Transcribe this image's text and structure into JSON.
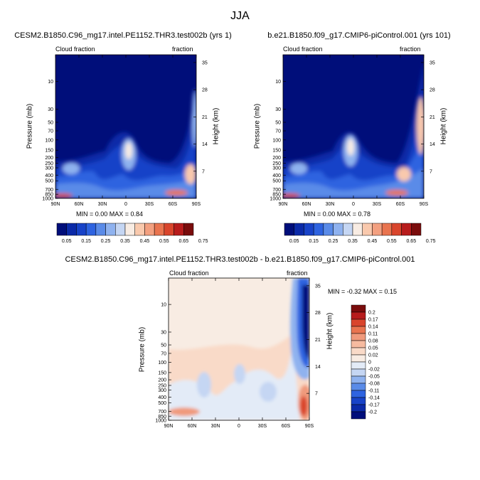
{
  "figure": {
    "title": "JJA",
    "colors": {
      "levels12": [
        "#000e7a",
        "#0b2aa8",
        "#1843c8",
        "#2e63e0",
        "#5a8be8",
        "#8fb2ef",
        "#c5d6f3",
        "#f8ece3",
        "#f9c9ad",
        "#f3a080",
        "#e9744f",
        "#d9452c",
        "#b71c1c",
        "#7a0c0c"
      ],
      "levels16": [
        "#000e7a",
        "#0b2aa8",
        "#1843c8",
        "#2e63e0",
        "#5a8be8",
        "#8fb2ef",
        "#c5d6f3",
        "#e3ebf7",
        "#f8ece3",
        "#f9dac8",
        "#f6bba0",
        "#f09a7c",
        "#e9744f",
        "#d9452c",
        "#b71c1c",
        "#7a0c0c"
      ]
    }
  },
  "chart_data": [
    {
      "type": "heatmap",
      "title": "CESM2.B1850.C96_mg17.intel.PE1152.THR3.test002b (yrs 1)",
      "subtitle_left": "Cloud fraction",
      "subtitle_right": "fraction",
      "ylabel": "Pressure (mb)",
      "ylabel_right": "Height (km)",
      "x_ticks": [
        "90N",
        "60N",
        "30N",
        "0",
        "30S",
        "60S",
        "90S"
      ],
      "y_ticks": [
        "10",
        "30",
        "50",
        "70",
        "100",
        "150",
        "200",
        "250",
        "300",
        "400",
        "500",
        "700",
        "850",
        "1000"
      ],
      "y_right_ticks": [
        "35",
        "28",
        "21",
        "14",
        "7"
      ],
      "min_max": "MIN =   0.00  MAX =   0.84",
      "colorbar_labels": [
        "0.05",
        "0.15",
        "0.25",
        "0.35",
        "0.45",
        "0.55",
        "0.65",
        "0.75"
      ]
    },
    {
      "type": "heatmap",
      "title": "b.e21.B1850.f09_g17.CMIP6-piControl.001 (yrs 101)",
      "subtitle_left": "Cloud fraction",
      "subtitle_right": "fraction",
      "ylabel": "Pressure (mb)",
      "ylabel_right": "Height (km)",
      "x_ticks": [
        "90N",
        "60N",
        "30N",
        "0",
        "30S",
        "60S",
        "90S"
      ],
      "y_ticks": [
        "10",
        "30",
        "50",
        "70",
        "100",
        "150",
        "200",
        "250",
        "300",
        "400",
        "500",
        "700",
        "850",
        "1000"
      ],
      "y_right_ticks": [
        "35",
        "28",
        "21",
        "14",
        "7"
      ],
      "min_max": "MIN =   0.00  MAX =   0.78",
      "colorbar_labels": [
        "0.05",
        "0.15",
        "0.25",
        "0.35",
        "0.45",
        "0.55",
        "0.65",
        "0.75"
      ]
    },
    {
      "type": "heatmap",
      "title": "CESM2.B1850.C96_mg17.intel.PE1152.THR3.test002b - b.e21.B1850.f09_g17.CMIP6-piControl.001",
      "subtitle_left": "Cloud fraction",
      "subtitle_right": "fraction",
      "ylabel": "Pressure (mb)",
      "ylabel_right": "Height (km)",
      "x_ticks": [
        "90N",
        "60N",
        "30N",
        "0",
        "30S",
        "60S",
        "90S"
      ],
      "y_ticks": [
        "10",
        "30",
        "50",
        "70",
        "100",
        "150",
        "200",
        "250",
        "300",
        "400",
        "500",
        "700",
        "850",
        "1000"
      ],
      "y_right_ticks": [
        "35",
        "28",
        "21",
        "14",
        "7"
      ],
      "min_max": "MIN =  -0.32  MAX =   0.15",
      "colorbar_labels": [
        "0.2",
        "0.17",
        "0.14",
        "0.11",
        "0.08",
        "0.05",
        "0.02",
        "0",
        "-0.02",
        "-0.05",
        "-0.08",
        "-0.11",
        "-0.14",
        "-0.17",
        "-0.2"
      ]
    }
  ]
}
